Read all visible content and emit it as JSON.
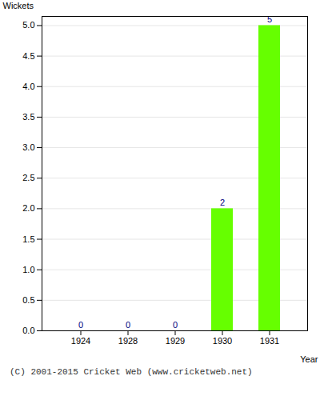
{
  "chart_data": {
    "type": "bar",
    "categories": [
      "1924",
      "1928",
      "1929",
      "1930",
      "1931"
    ],
    "values": [
      0,
      0,
      0,
      2,
      5
    ],
    "color": "#66ff00",
    "xlabel": "Year",
    "ylabel": "Wickets",
    "ylim": [
      0,
      5.15
    ],
    "yticks": [
      {
        "value": 0,
        "label": "0.0"
      },
      0.5,
      {
        "value": 1,
        "label": "1.0"
      },
      1.5,
      {
        "value": 2,
        "label": "2.0"
      },
      2.5,
      {
        "value": 3,
        "label": "3.0"
      },
      3.5,
      {
        "value": 4,
        "label": "4.0"
      },
      4.5,
      {
        "value": 5,
        "label": "5.0"
      }
    ],
    "grid": true,
    "data_labels": true,
    "annotations": [
      "(C) 2001-2015 Cricket Web (www.cricketweb.net)"
    ]
  }
}
